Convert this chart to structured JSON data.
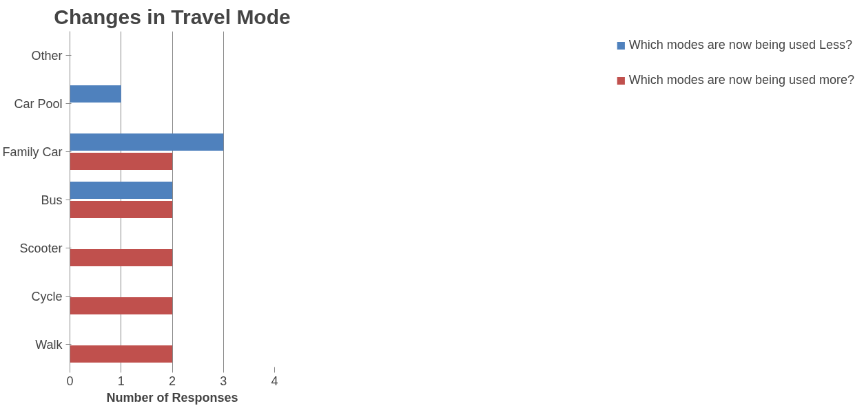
{
  "chart_data": {
    "type": "bar",
    "orientation": "horizontal",
    "title": "Changes in Travel Mode",
    "xlabel": "Number of Responses",
    "categories": [
      "Other",
      "Car Pool",
      "Family Car",
      "Bus",
      "Scooter",
      "Cycle",
      "Walk"
    ],
    "series": [
      {
        "name": "Which modes are now being used Less?",
        "color": "#4f81bd",
        "values": [
          0,
          1,
          3,
          2,
          0,
          0,
          0
        ]
      },
      {
        "name": "Which modes are now being used more?",
        "color": "#c0504d",
        "values": [
          0,
          0,
          2,
          2,
          2,
          2,
          2
        ]
      }
    ],
    "xlim": [
      0,
      4
    ],
    "xticks": [
      0,
      1,
      2,
      3,
      4
    ],
    "grid": "x",
    "legend": "right"
  }
}
